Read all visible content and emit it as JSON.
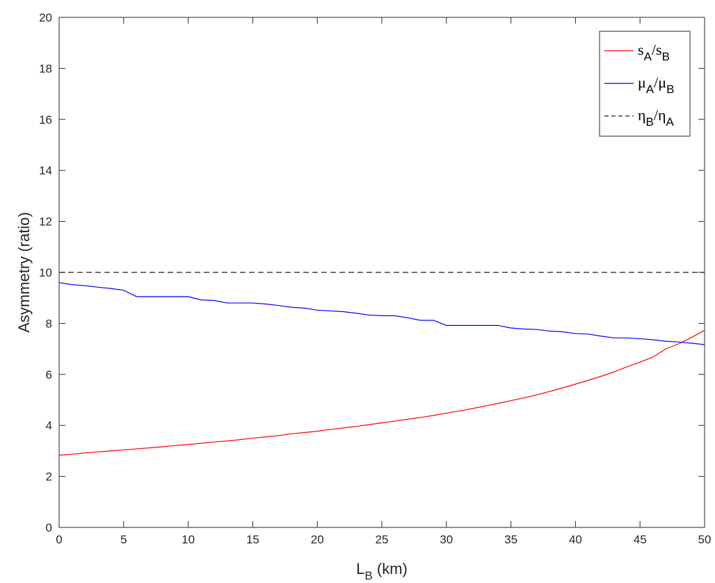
{
  "chart_data": {
    "type": "line",
    "xlabel": {
      "main": "L",
      "sub": "B",
      "rest": " (km)"
    },
    "ylabel": "Asymmetry (ratio)",
    "xlim": [
      0,
      50
    ],
    "ylim": [
      0,
      20
    ],
    "xticks": [
      0,
      5,
      10,
      15,
      20,
      25,
      30,
      35,
      40,
      45,
      50
    ],
    "yticks": [
      0,
      2,
      4,
      6,
      8,
      10,
      12,
      14,
      16,
      18,
      20
    ],
    "grid": false,
    "legend_position": "top-right",
    "series": [
      {
        "key": "s",
        "legend": {
          "a": "s",
          "a_sub": "A",
          "b": "s",
          "b_sub": "B"
        },
        "color": "#ff0000",
        "dash": "none",
        "x": [
          0,
          1,
          2,
          3,
          4,
          5,
          6,
          7,
          8,
          9,
          10,
          11,
          12,
          13,
          14,
          15,
          16,
          17,
          18,
          19,
          20,
          21,
          22,
          23,
          24,
          25,
          26,
          27,
          28,
          29,
          30,
          31,
          32,
          33,
          34,
          35,
          36,
          37,
          38,
          39,
          40,
          41,
          42,
          43,
          44,
          45,
          46,
          47,
          48,
          49,
          50
        ],
        "y": [
          2.83,
          2.87,
          2.92,
          2.96,
          3.0,
          3.04,
          3.08,
          3.12,
          3.16,
          3.21,
          3.25,
          3.3,
          3.35,
          3.39,
          3.44,
          3.5,
          3.55,
          3.6,
          3.67,
          3.72,
          3.77,
          3.84,
          3.9,
          3.96,
          4.03,
          4.1,
          4.17,
          4.24,
          4.31,
          4.39,
          4.48,
          4.57,
          4.66,
          4.76,
          4.86,
          4.97,
          5.08,
          5.2,
          5.33,
          5.47,
          5.62,
          5.77,
          5.93,
          6.1,
          6.3,
          6.48,
          6.68,
          7.0,
          7.2,
          7.45,
          7.73
        ]
      },
      {
        "key": "mu",
        "legend": {
          "a": "μ",
          "a_sub": "A",
          "b": "μ",
          "b_sub": "B"
        },
        "color": "#0000ff",
        "dash": "none",
        "x": [
          0,
          1,
          2,
          3,
          4,
          5,
          6,
          7,
          8,
          9,
          10,
          11,
          12,
          13,
          14,
          15,
          16,
          17,
          18,
          19,
          20,
          21,
          22,
          23,
          24,
          25,
          26,
          27,
          28,
          29,
          30,
          31,
          32,
          33,
          34,
          35,
          36,
          37,
          38,
          39,
          40,
          41,
          42,
          43,
          44,
          45,
          46,
          47,
          48,
          49,
          50
        ],
        "y": [
          9.6,
          9.52,
          9.48,
          9.42,
          9.37,
          9.3,
          9.05,
          9.05,
          9.05,
          9.05,
          9.05,
          8.92,
          8.9,
          8.8,
          8.8,
          8.8,
          8.76,
          8.7,
          8.63,
          8.6,
          8.52,
          8.49,
          8.46,
          8.4,
          8.33,
          8.3,
          8.3,
          8.22,
          8.12,
          8.12,
          7.92,
          7.92,
          7.92,
          7.92,
          7.92,
          7.82,
          7.78,
          7.76,
          7.7,
          7.67,
          7.6,
          7.58,
          7.5,
          7.43,
          7.43,
          7.4,
          7.36,
          7.3,
          7.27,
          7.22,
          7.17
        ]
      },
      {
        "key": "eta",
        "legend": {
          "a": "η",
          "a_sub": "B",
          "b": "η",
          "b_sub": "A"
        },
        "color": "#404040",
        "dash": "8,5",
        "x": [
          0,
          50
        ],
        "y": [
          10,
          10
        ]
      }
    ]
  }
}
